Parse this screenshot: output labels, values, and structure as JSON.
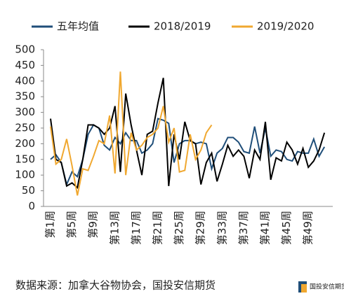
{
  "chart_data": {
    "type": "line",
    "categories": [
      "第1周",
      null,
      null,
      null,
      "第5周",
      null,
      null,
      null,
      "第9周",
      null,
      null,
      null,
      "第13周",
      null,
      null,
      null,
      "第17周",
      null,
      null,
      null,
      "第21周",
      null,
      null,
      null,
      "第25周",
      null,
      null,
      null,
      "第29周",
      null,
      null,
      null,
      "第33周",
      null,
      null,
      null,
      "第37周",
      null,
      null,
      null,
      "第41周",
      null,
      null,
      null,
      "第45周",
      null,
      null,
      null,
      "第49周",
      null,
      null,
      null
    ],
    "series": [
      {
        "name": "五年均值",
        "color": "#1f4e79",
        "values": [
          150,
          165,
          140,
          70,
          110,
          95,
          150,
          230,
          260,
          250,
          195,
          180,
          220,
          200,
          235,
          210,
          210,
          170,
          180,
          200,
          280,
          275,
          265,
          140,
          200,
          210,
          210,
          200,
          205,
          200,
          120,
          170,
          185,
          220,
          220,
          205,
          175,
          170,
          255,
          170,
          250,
          160,
          180,
          175,
          150,
          145,
          175,
          170,
          170,
          215,
          160,
          190
        ]
      },
      {
        "name": "2018/2019",
        "color": "#000000",
        "values": [
          280,
          150,
          140,
          65,
          75,
          60,
          150,
          260,
          260,
          250,
          230,
          250,
          320,
          110,
          360,
          260,
          180,
          100,
          230,
          240,
          330,
          410,
          65,
          230,
          150,
          270,
          210,
          200,
          70,
          140,
          170,
          80,
          135,
          195,
          160,
          180,
          160,
          90,
          180,
          150,
          270,
          85,
          155,
          145,
          205,
          180,
          135,
          185,
          125,
          145,
          180,
          235
        ]
      },
      {
        "name": "2019/2020",
        "color": "#f0a830",
        "values": [
          255,
          135,
          150,
          215,
          130,
          35,
          120,
          115,
          160,
          210,
          200,
          290,
          105,
          430,
          100,
          235,
          180,
          195,
          220,
          230,
          250,
          320,
          205,
          250,
          110,
          115,
          230,
          150,
          180,
          235,
          260,
          null,
          null,
          null,
          null,
          null,
          null,
          null,
          null,
          null,
          null,
          null,
          null,
          null,
          null,
          null,
          null,
          null,
          null,
          null,
          null,
          null
        ]
      }
    ],
    "ylim": [
      0,
      500
    ],
    "yticks": [
      0,
      50,
      100,
      150,
      200,
      250,
      300,
      350,
      400,
      450,
      500
    ],
    "source": "数据来源：加拿大谷物协会，国投安信期货",
    "logo": "国投安信期货"
  }
}
